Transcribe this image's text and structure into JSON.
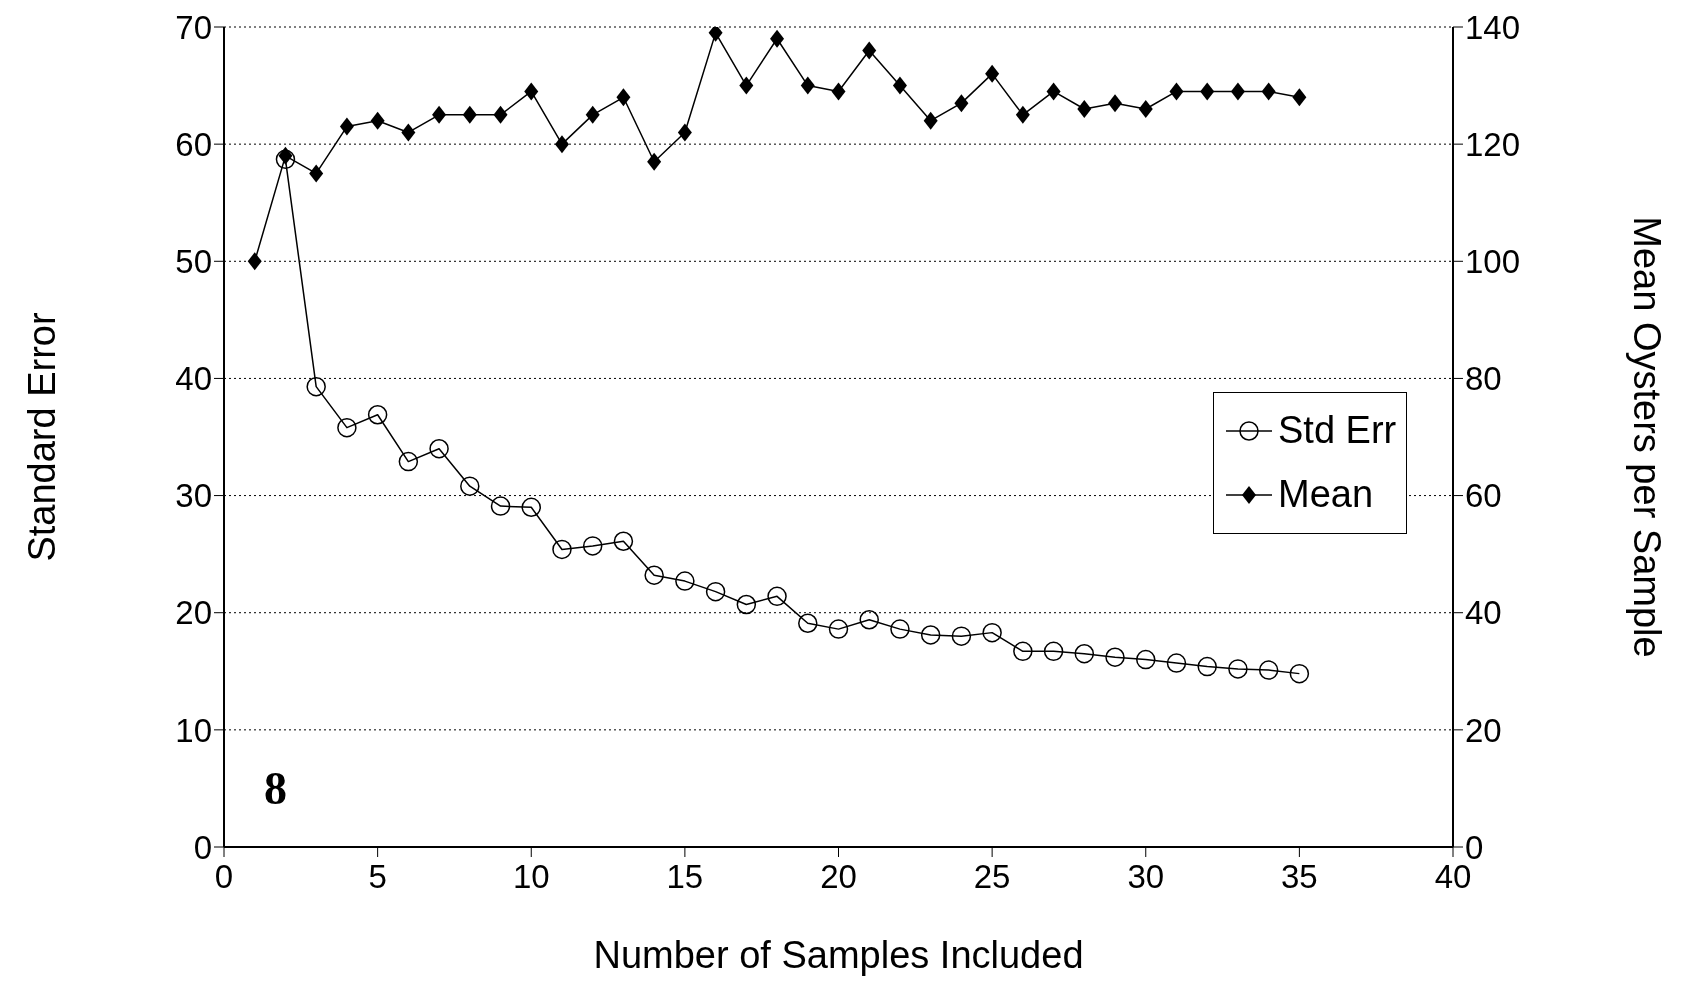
{
  "chart_data": {
    "type": "line",
    "xlabel": "Number of Samples Included",
    "ylabel": "Standard Error",
    "y2label": "Mean Oysters per Sample",
    "xlim": [
      0,
      40
    ],
    "xticks": [
      0,
      5,
      10,
      15,
      20,
      25,
      30,
      35,
      40
    ],
    "ylim": [
      0,
      70
    ],
    "yticks": [
      0,
      10,
      20,
      30,
      40,
      50,
      60,
      70
    ],
    "y2lim": [
      0,
      140
    ],
    "y2ticks": [
      0,
      20,
      40,
      60,
      80,
      100,
      120,
      140
    ],
    "grid": "y",
    "legend": "right",
    "line_style": "solid",
    "annotations": [
      "8"
    ],
    "series": [
      {
        "name": "Std Err",
        "color": "#000000",
        "marker": "circle",
        "x": [
          2,
          3,
          4,
          5,
          6,
          7,
          8,
          9,
          10,
          11,
          12,
          13,
          14,
          15,
          16,
          17,
          18,
          19,
          20,
          21,
          22,
          23,
          24,
          25,
          26,
          27,
          28,
          29,
          30,
          31,
          32,
          33,
          34,
          35
        ],
        "values": [
          58.7,
          39.3,
          35.8,
          36.9,
          32.9,
          34,
          30.8,
          29.1,
          29,
          25.4,
          25.7,
          26.1,
          23.2,
          22.7,
          21.8,
          20.7,
          21.4,
          19.1,
          18.6,
          19.4,
          18.6,
          18.1,
          18,
          18.3,
          16.7,
          16.7,
          16.5,
          16.2,
          16,
          15.7,
          15.4,
          15.2,
          15.1,
          14.8
        ]
      },
      {
        "name": "Mean",
        "color": "#000000",
        "marker": "diamond",
        "axis": "y2",
        "x": [
          1,
          2,
          3,
          4,
          5,
          6,
          7,
          8,
          9,
          10,
          11,
          12,
          13,
          14,
          15,
          16,
          17,
          18,
          19,
          20,
          21,
          22,
          23,
          24,
          25,
          26,
          27,
          28,
          29,
          30,
          31,
          32,
          33,
          34,
          35
        ],
        "values": [
          100,
          118,
          115,
          123,
          124,
          122,
          125,
          125,
          125,
          129,
          120,
          125,
          128,
          117,
          122,
          139,
          130,
          138,
          130,
          129,
          136,
          130,
          124,
          127,
          132,
          125,
          129,
          126,
          127,
          126,
          129,
          129,
          129,
          129,
          128
        ]
      }
    ]
  }
}
